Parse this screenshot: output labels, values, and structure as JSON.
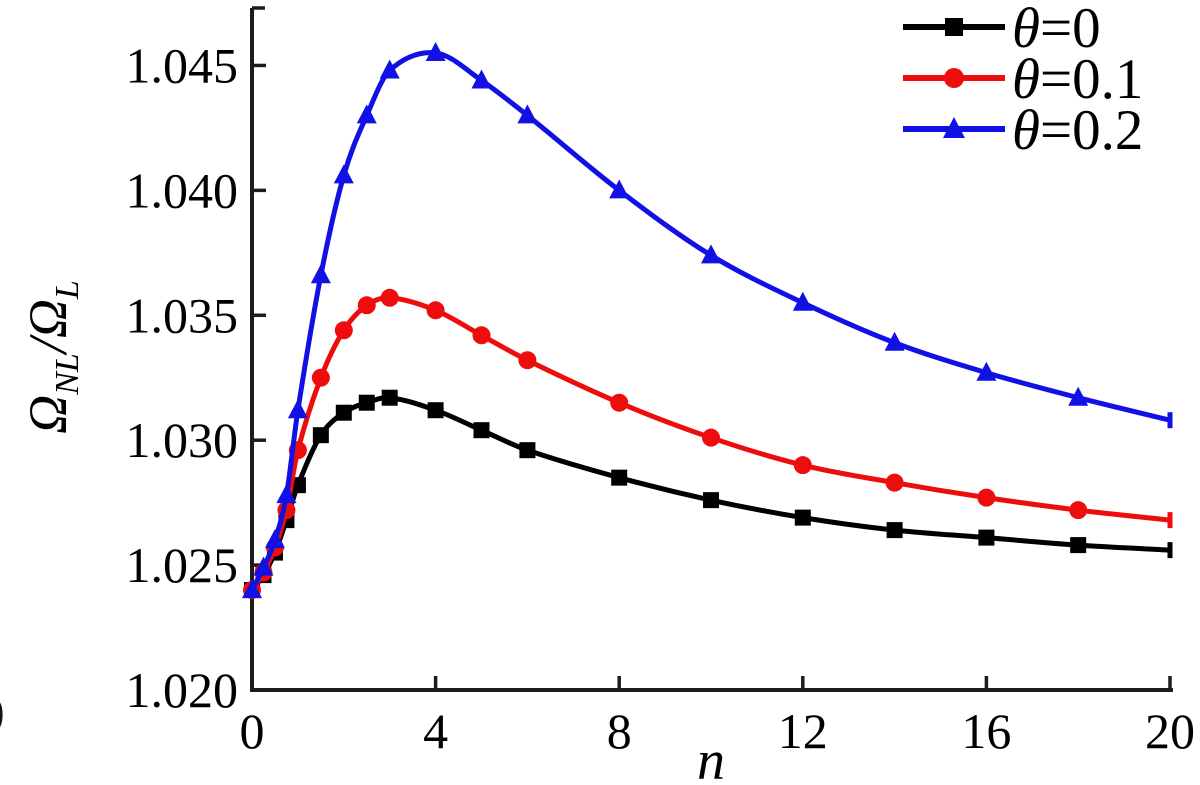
{
  "figure": {
    "edge_fragment": ")"
  },
  "chart_data": {
    "type": "line",
    "title": "",
    "xlabel": "n",
    "ylabel": "Ω_NL/Ω_L",
    "ylabel_parts": [
      {
        "text": "Ω",
        "sub": false,
        "italic": true
      },
      {
        "text": "NL",
        "sub": true,
        "italic": true
      },
      {
        "text": "/",
        "sub": false,
        "italic": true
      },
      {
        "text": "Ω",
        "sub": false,
        "italic": true
      },
      {
        "text": "L",
        "sub": true,
        "italic": true
      }
    ],
    "xlim": [
      0,
      20
    ],
    "ylim": [
      1.02,
      1.0473
    ],
    "grid": false,
    "legend_position": "top-right",
    "axis_color": "#1c1c1c",
    "text_color": "#000000",
    "x_ticks": [
      {
        "value": 0,
        "label": "0"
      },
      {
        "value": 4,
        "label": "4"
      },
      {
        "value": 8,
        "label": "8"
      },
      {
        "value": 12,
        "label": "12"
      },
      {
        "value": 16,
        "label": "16"
      },
      {
        "value": 20,
        "label": "20"
      }
    ],
    "y_ticks": [
      {
        "value": 1.02,
        "label": "1.020"
      },
      {
        "value": 1.025,
        "label": "1.025"
      },
      {
        "value": 1.03,
        "label": "1.030"
      },
      {
        "value": 1.035,
        "label": "1.035"
      },
      {
        "value": 1.04,
        "label": "1.040"
      },
      {
        "value": 1.045,
        "label": "1.045"
      }
    ],
    "x": [
      0,
      0.25,
      0.5,
      0.75,
      1,
      1.5,
      2,
      2.5,
      3,
      4,
      5,
      6,
      8,
      10,
      12,
      14,
      16,
      18,
      20
    ],
    "series": [
      {
        "name": "θ=0",
        "color": "#000000",
        "marker": "square",
        "values": [
          1.024,
          1.0246,
          1.0255,
          1.0268,
          1.0282,
          1.0302,
          1.0311,
          1.0315,
          1.0317,
          1.0312,
          1.0304,
          1.0296,
          1.0285,
          1.0276,
          1.0269,
          1.0264,
          1.0261,
          1.0258,
          1.0256
        ]
      },
      {
        "name": "θ=0.1",
        "color": "#ee0d0d",
        "marker": "circle",
        "values": [
          1.024,
          1.0247,
          1.0257,
          1.0272,
          1.0296,
          1.0325,
          1.0344,
          1.0354,
          1.0357,
          1.0352,
          1.0342,
          1.0332,
          1.0315,
          1.0301,
          1.029,
          1.0283,
          1.0277,
          1.0272,
          1.0268
        ]
      },
      {
        "name": "θ=0.2",
        "color": "#1111e6",
        "marker": "triangle",
        "values": [
          1.024,
          1.0249,
          1.026,
          1.0278,
          1.0312,
          1.0366,
          1.0406,
          1.043,
          1.0448,
          1.0455,
          1.0444,
          1.043,
          1.04,
          1.0374,
          1.0355,
          1.0339,
          1.0327,
          1.0317,
          1.0308
        ]
      }
    ]
  }
}
